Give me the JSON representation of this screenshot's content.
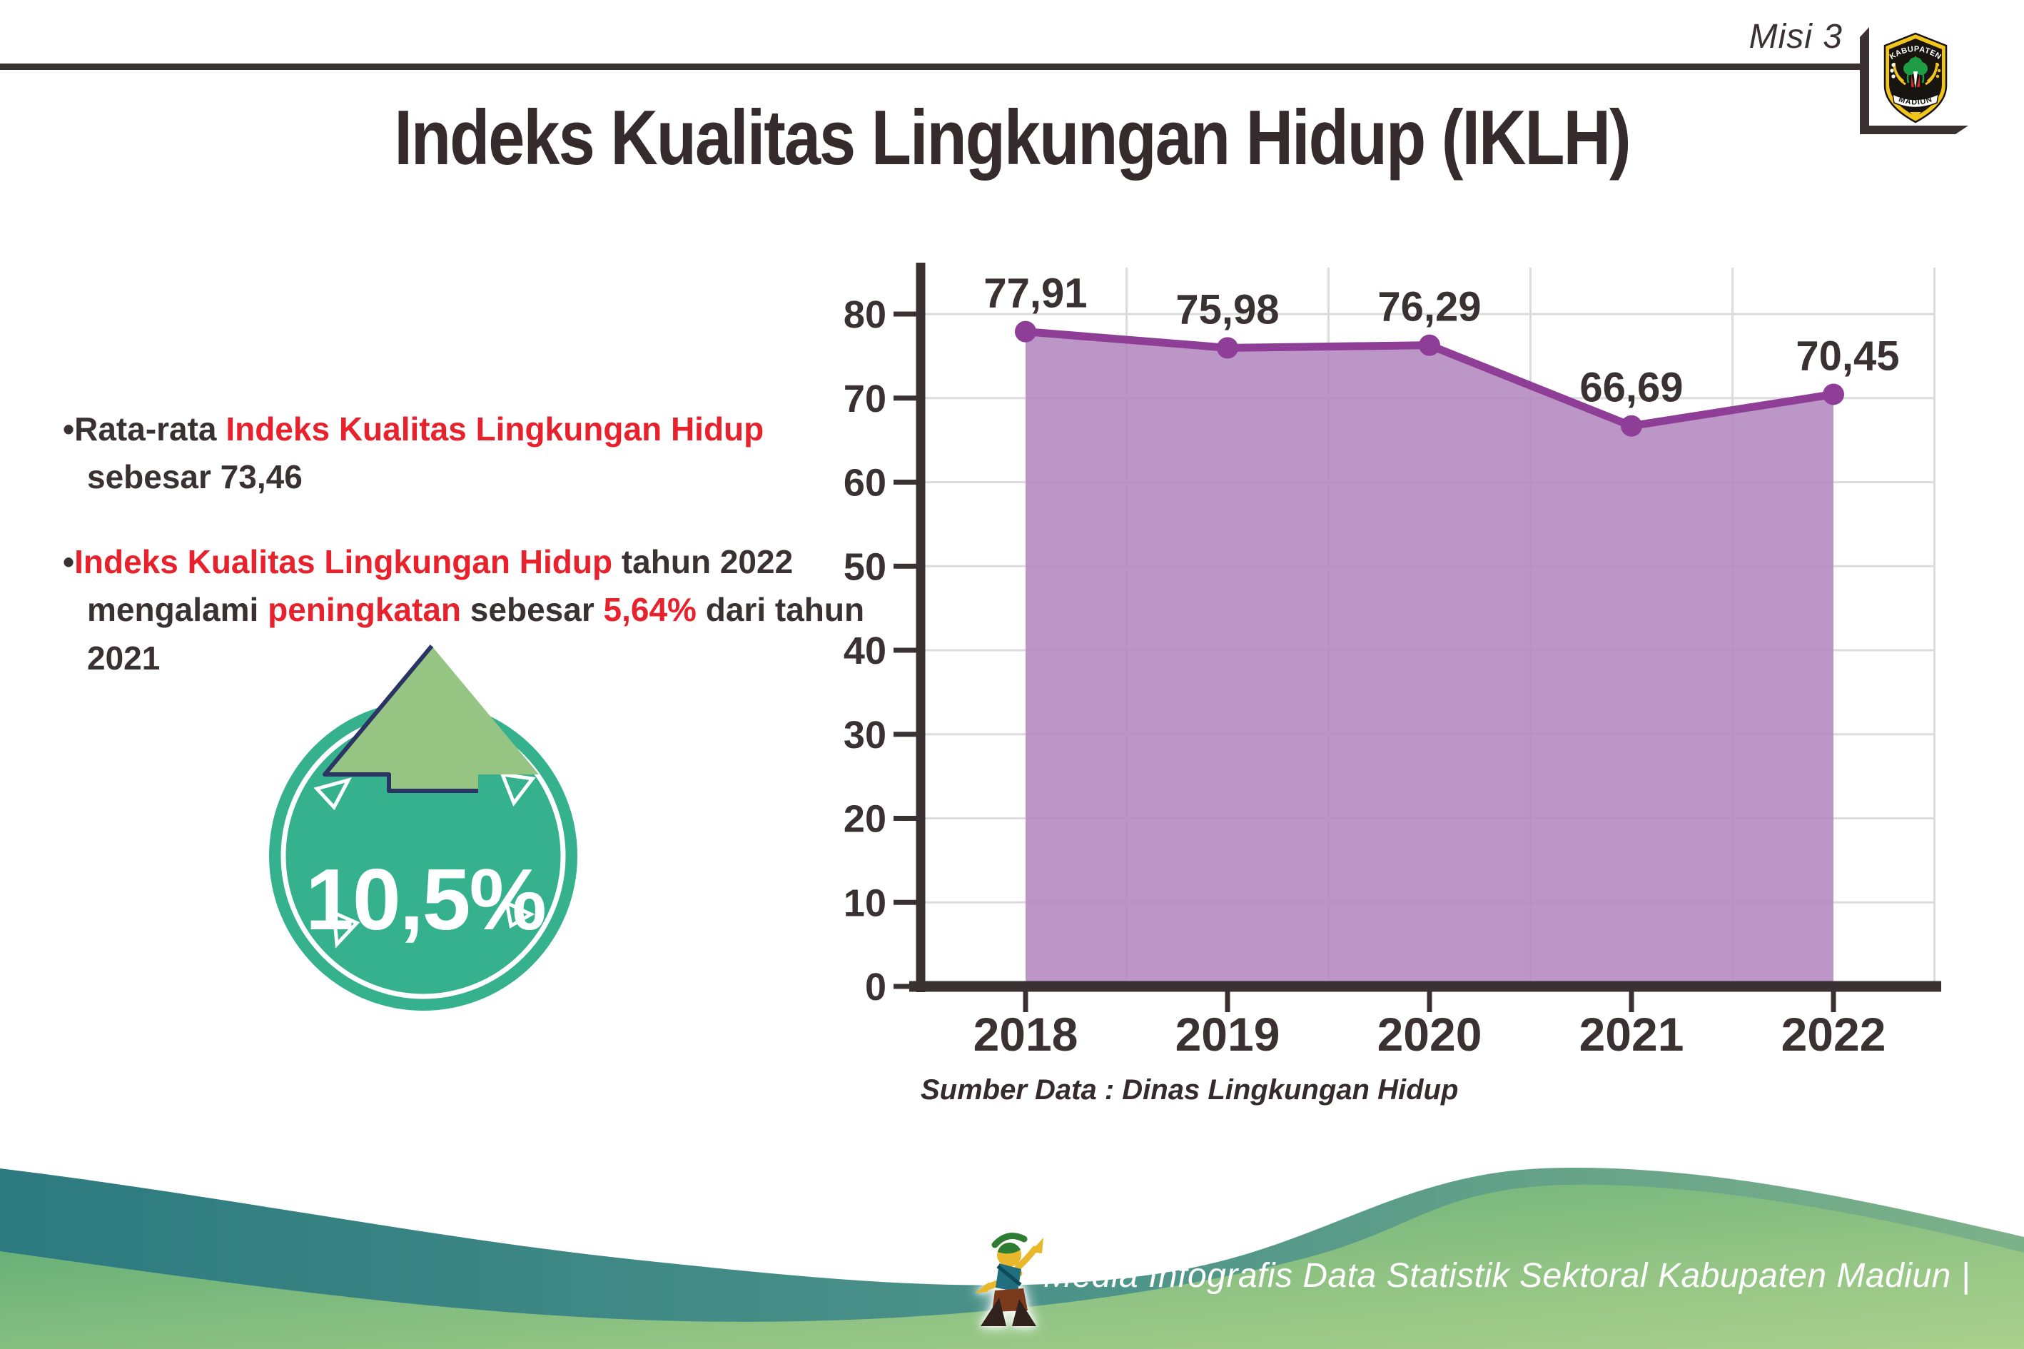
{
  "header": {
    "misi_label": "Misi 3",
    "logo": {
      "top_text": "KABUPATEN",
      "bottom_text": "MADIUN"
    }
  },
  "title": "Indeks Kualitas Lingkungan Hidup (IKLH)",
  "notes": {
    "bullet_char": "•",
    "bullet1": {
      "segments": [
        {
          "text": "Rata-rata ",
          "color": "dark"
        },
        {
          "text": "Indeks Kualitas Lingkungan Hidup",
          "color": "red"
        },
        {
          "text": " sebesar 73,46",
          "color": "dark"
        }
      ]
    },
    "bullet2": {
      "segments": [
        {
          "text": "Indeks Kualitas Lingkungan Hidup",
          "color": "red"
        },
        {
          "text": " tahun 2022 mengalami ",
          "color": "dark"
        },
        {
          "text": "peningkatan",
          "color": "red"
        },
        {
          "text": " sebesar ",
          "color": "dark"
        },
        {
          "text": "5,64%",
          "color": "red"
        },
        {
          "text": " dari tahun 2021",
          "color": "dark"
        }
      ]
    }
  },
  "badge": {
    "value": "10,5%",
    "circle_color": "#35b18e",
    "arrow_color": "#96c583",
    "arrow_outline_color": "#2a3564"
  },
  "chart_data": {
    "type": "area",
    "title": "",
    "categories": [
      "2018",
      "2019",
      "2020",
      "2021",
      "2022"
    ],
    "values": [
      77.91,
      75.98,
      76.29,
      66.69,
      70.45
    ],
    "value_labels": [
      "77,91",
      "75,98",
      "76,29",
      "66,69",
      "70,45"
    ],
    "xlabel": "",
    "ylabel": "",
    "ylim": [
      0,
      80
    ],
    "yticks": [
      0,
      10,
      20,
      30,
      40,
      50,
      60,
      70,
      80
    ],
    "grid": true,
    "legend": "none",
    "fill_color": "#b287be",
    "line_color": "#8e3e96",
    "source_note": "Sumber Data : Dinas Lingkungan Hidup"
  },
  "footer": {
    "text": "Media Infografis Data Statistik Sektoral Kabupaten Madiun |"
  },
  "colors": {
    "ink": "#3a3133",
    "red": "#e8222d",
    "grid": "#dcdcdc",
    "wave_teal": "#2c7a80",
    "wave_teal_light": "#7db289",
    "wave_green_dark": "#57a873",
    "wave_green_light": "#abd08d"
  }
}
